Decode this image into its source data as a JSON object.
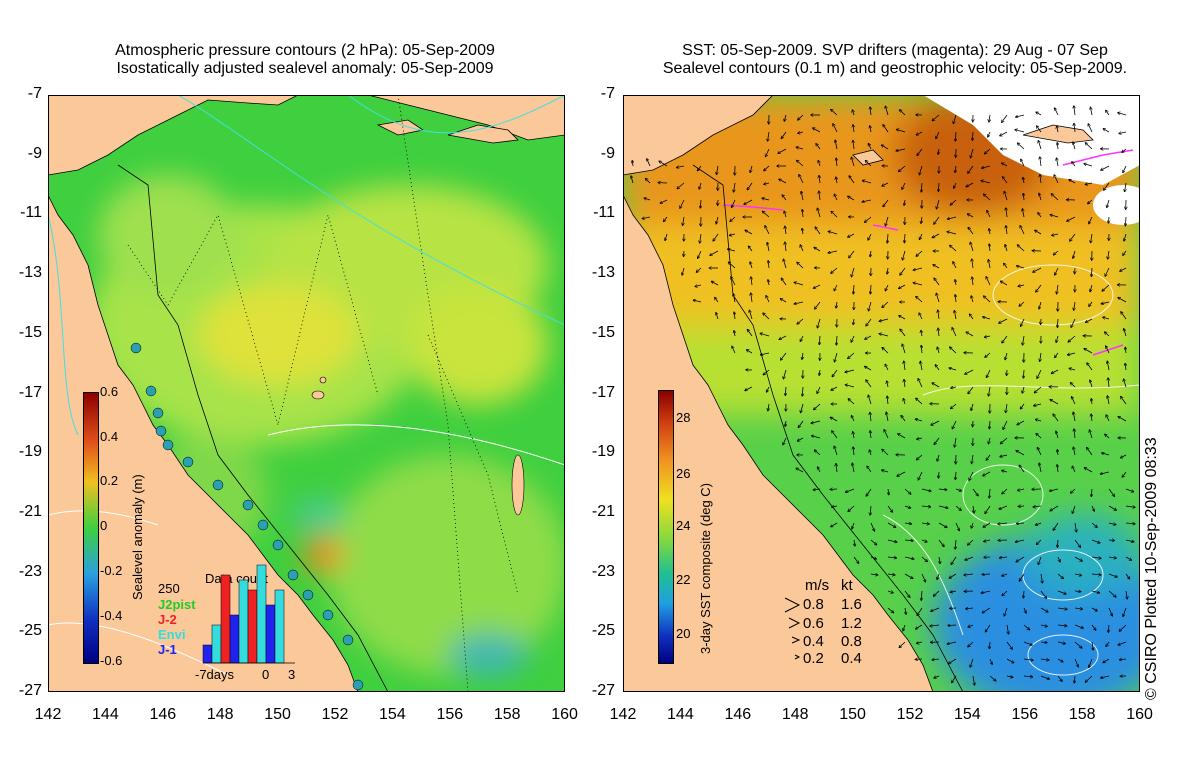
{
  "left_panel": {
    "title_line1": "Atmospheric pressure contours (2 hPa): 05-Sep-2009",
    "title_line2": "Isostatically adjusted sealevel anomaly: 05-Sep-2009",
    "colorbar": {
      "label": "Sealevel anomaly (m)",
      "ticks": [
        "0.6",
        "0.4",
        "0.2",
        "0",
        "-0.2",
        "-0.4",
        "-0.6"
      ],
      "min": -0.6,
      "max": 0.6
    },
    "data_count": {
      "title": "Data count",
      "ymax_label": "250",
      "legend": [
        {
          "name": "J2pist",
          "color": "#22cc22"
        },
        {
          "name": "J-2",
          "color": "#ee2222"
        },
        {
          "name": "Envi",
          "color": "#33dddd"
        },
        {
          "name": "J-1",
          "color": "#2222ee"
        }
      ],
      "x_labels": [
        "-7days",
        "0",
        "3"
      ]
    }
  },
  "right_panel": {
    "title_line1": "SST: 05-Sep-2009. SVP drifters (magenta): 29 Aug - 07 Sep",
    "title_line2": "Sealevel contours (0.1 m) and geostrophic velocity: 05-Sep-2009.",
    "colorbar": {
      "label": "3-day SST composite (deg C)",
      "ticks": [
        "28",
        "26",
        "24",
        "22",
        "20"
      ],
      "min": 19,
      "max": 29
    },
    "velocity_legend": {
      "header_ms": "m/s",
      "header_kt": "kt",
      "rows": [
        {
          "ms": "0.8",
          "kt": "1.6"
        },
        {
          "ms": "0.6",
          "kt": "1.2"
        },
        {
          "ms": "0.4",
          "kt": "0.8"
        },
        {
          "ms": "0.2",
          "kt": "0.4"
        }
      ]
    }
  },
  "axes": {
    "lat_labels": [
      "-7",
      "-9",
      "-11",
      "-13",
      "-15",
      "-17",
      "-19",
      "-21",
      "-23",
      "-25",
      "-27"
    ],
    "lon_labels": [
      "142",
      "144",
      "146",
      "148",
      "150",
      "152",
      "154",
      "156",
      "158",
      "160"
    ]
  },
  "copyright": "© CSIRO Plotted 10-Sep-2009 08:33",
  "colors": {
    "land": "#fbc89a",
    "ocean_green": "#3fcf3f",
    "ocean_light": "#9fe34a",
    "ocean_yellow": "#e7e33a",
    "sst_orange": "#e8961e",
    "sst_yellow": "#f0d020",
    "sst_green": "#58d04a",
    "sst_blue": "#2a8fe0",
    "drifter": "#ff33ff"
  }
}
